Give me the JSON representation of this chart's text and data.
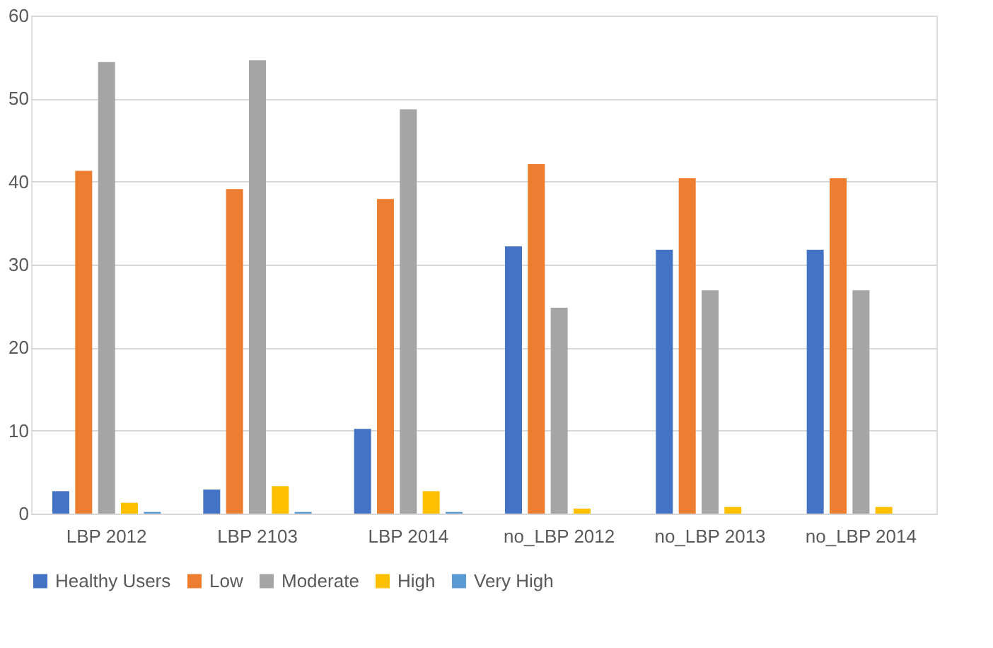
{
  "chart_data": {
    "type": "bar",
    "categories": [
      "LBP 2012",
      "LBP 2103",
      "LBP 2014",
      "no_LBP 2012",
      "no_LBP 2013",
      "no_LBP 2014"
    ],
    "series": [
      {
        "name": "Healthy Users",
        "color": "#4472c4",
        "values": [
          2.7,
          2.9,
          10.2,
          32.2,
          31.8,
          31.8
        ]
      },
      {
        "name": "Low",
        "color": "#ed7d31",
        "values": [
          41.3,
          39.1,
          37.9,
          42.1,
          40.4,
          40.4
        ]
      },
      {
        "name": "Moderate",
        "color": "#a5a5a5",
        "values": [
          54.4,
          54.6,
          48.7,
          24.8,
          26.9,
          26.9
        ]
      },
      {
        "name": "High",
        "color": "#ffc000",
        "values": [
          1.3,
          3.3,
          2.7,
          0.6,
          0.8,
          0.8
        ]
      },
      {
        "name": "Very High",
        "color": "#5b9bd5",
        "values": [
          0.2,
          0.2,
          0.2,
          0,
          0,
          0
        ]
      }
    ],
    "ylim": [
      0,
      60
    ],
    "yticks": [
      0,
      10,
      20,
      30,
      40,
      50,
      60
    ],
    "grid": "y",
    "legend": "bottom"
  }
}
